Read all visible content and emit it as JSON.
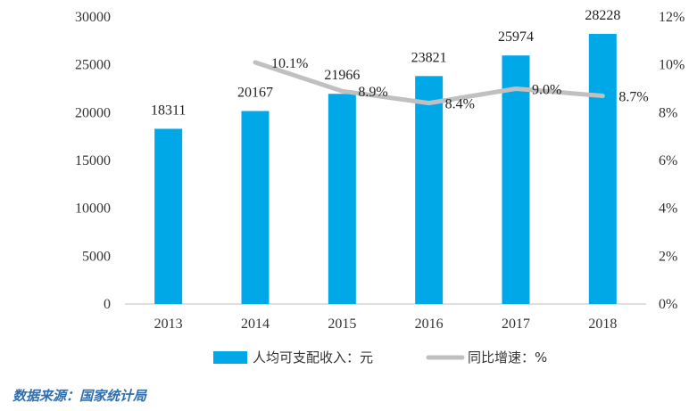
{
  "chart_data": {
    "type": "bar",
    "categories": [
      "2013",
      "2014",
      "2015",
      "2016",
      "2017",
      "2018"
    ],
    "series": [
      {
        "name": "人均可支配收入：元",
        "type": "bar",
        "axis": "left",
        "values": [
          18311,
          20167,
          21966,
          23821,
          25974,
          28228
        ],
        "labels": [
          "18311",
          "20167",
          "21966",
          "23821",
          "25974",
          "28228"
        ]
      },
      {
        "name": "同比增速：%",
        "type": "line",
        "axis": "right",
        "values": [
          null,
          10.1,
          8.9,
          8.4,
          9.0,
          8.7
        ],
        "labels": [
          "",
          "10.1%",
          "8.9%",
          "8.4%",
          "9.0%",
          "8.7%"
        ]
      }
    ],
    "y_left": {
      "min": 0,
      "max": 30000,
      "ticks": [
        "0",
        "5000",
        "10000",
        "15000",
        "20000",
        "25000",
        "30000"
      ]
    },
    "y_right": {
      "min": 0,
      "max": 12,
      "ticks": [
        "0%",
        "2%",
        "4%",
        "6%",
        "8%",
        "10%",
        "12%"
      ]
    },
    "grid": false,
    "legend": "bottom",
    "colors": {
      "bar": "#00a8e8",
      "line": "#c0c0c0"
    }
  },
  "source_text": "数据来源：国家统计局"
}
